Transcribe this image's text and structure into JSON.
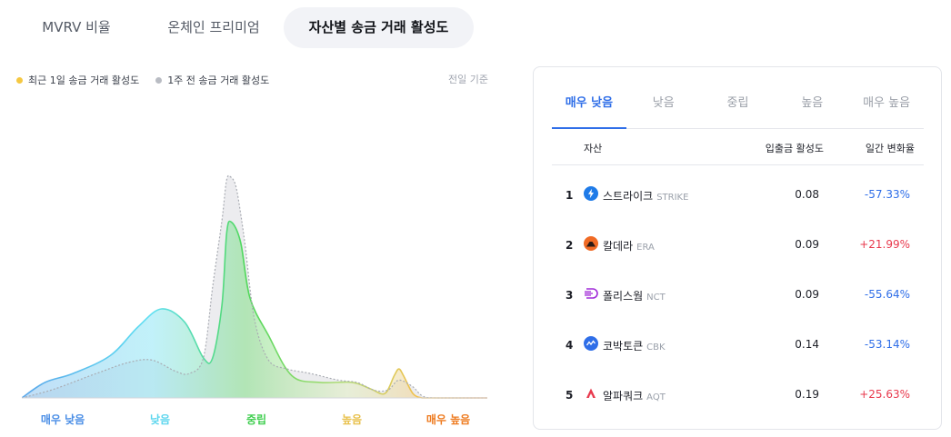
{
  "tabs": [
    "MVRV 비율",
    "온체인 프리미엄",
    "자산별 송금 거래 활성도"
  ],
  "legend": {
    "recent": "최근 1일 송금 거래 활성도",
    "week": "1주 전 송금 거래 활성도",
    "basis": "전일 기준"
  },
  "chart_data": {
    "type": "area",
    "categories": [
      "매우 낮음",
      "낮음",
      "중립",
      "높음",
      "매우 높음"
    ],
    "category_colors": [
      "#4a8ee6",
      "#5dd6ee",
      "#3fce4f",
      "#e8c04a",
      "#ee7a1e"
    ],
    "series": [
      {
        "name": "최근 1일 송금 거래 활성도",
        "color": "#f5c842",
        "x": [
          0,
          0.05,
          0.11,
          0.19,
          0.25,
          0.3,
          0.35,
          0.39,
          0.41,
          0.43,
          0.44,
          0.45,
          0.47,
          0.49,
          0.53,
          0.58,
          0.64,
          0.71,
          0.75,
          0.78,
          0.8,
          0.81,
          0.82,
          0.84,
          0.86,
          0.88,
          0.92,
          1
        ],
        "y": [
          0,
          0.07,
          0.11,
          0.19,
          0.32,
          0.4,
          0.34,
          0.18,
          0.18,
          0.42,
          0.74,
          0.79,
          0.7,
          0.45,
          0.28,
          0.1,
          0.07,
          0.07,
          0.04,
          0.02,
          0.1,
          0.13,
          0.1,
          0.02,
          0,
          0,
          0,
          0
        ]
      },
      {
        "name": "1주 전 송금 거래 활성도",
        "color": "#b9bcc3",
        "x": [
          0,
          0.07,
          0.16,
          0.23,
          0.28,
          0.33,
          0.36,
          0.39,
          0.41,
          0.43,
          0.44,
          0.45,
          0.46,
          0.47,
          0.48,
          0.5,
          0.53,
          0.57,
          0.62,
          0.68,
          0.72,
          0.75,
          0.77,
          0.79,
          0.81,
          0.84,
          0.86,
          0.89,
          1
        ],
        "y": [
          0,
          0.04,
          0.11,
          0.16,
          0.17,
          0.12,
          0.11,
          0.18,
          0.5,
          0.8,
          0.98,
          0.99,
          0.95,
          0.83,
          0.68,
          0.35,
          0.17,
          0.13,
          0.11,
          0.08,
          0.07,
          0.04,
          0.03,
          0.04,
          0.08,
          0.05,
          0.01,
          0,
          0
        ]
      }
    ]
  },
  "panel": {
    "tabs": [
      "매우 낮음",
      "낮음",
      "중립",
      "높음",
      "매우 높음"
    ],
    "active_tab": 0,
    "headers": {
      "asset": "자산",
      "activity": "입출금 활성도",
      "change": "일간 변화율"
    },
    "rows": [
      {
        "rank": "1",
        "name": "스트라이크",
        "symbol": "STRIKE",
        "activity": "0.08",
        "change": "-57.33%",
        "icon": "lightning-icon",
        "icon_color": "#1f7be8"
      },
      {
        "rank": "2",
        "name": "칼데라",
        "symbol": "ERA",
        "activity": "0.09",
        "change": "+21.99%",
        "icon": "volcano-icon",
        "icon_color": "#f06a24"
      },
      {
        "rank": "3",
        "name": "폴리스웜",
        "symbol": "NCT",
        "activity": "0.09",
        "change": "-55.64%",
        "icon": "swarm-icon",
        "icon_color": "#a02bd8"
      },
      {
        "rank": "4",
        "name": "코박토큰",
        "symbol": "CBK",
        "activity": "0.14",
        "change": "-53.14%",
        "icon": "wave-icon",
        "icon_color": "#2f6ee8"
      },
      {
        "rank": "5",
        "name": "알파쿼크",
        "symbol": "AQT",
        "activity": "0.19",
        "change": "+25.63%",
        "icon": "alpha-icon",
        "icon_color": "#e8394d"
      }
    ]
  }
}
